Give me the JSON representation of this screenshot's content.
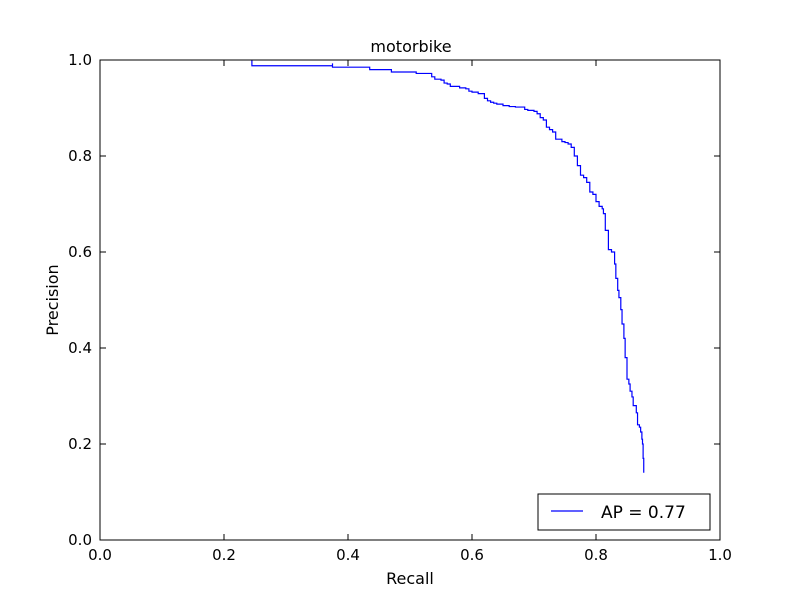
{
  "chart_data": {
    "type": "line",
    "title": "motorbike",
    "xlabel": "Recall",
    "ylabel": "Precision",
    "xlim": [
      0.0,
      1.0
    ],
    "ylim": [
      0.0,
      1.0
    ],
    "x_ticks": [
      "0.0",
      "0.2",
      "0.4",
      "0.6",
      "0.8",
      "1.0"
    ],
    "y_ticks": [
      "0.0",
      "0.2",
      "0.4",
      "0.6",
      "0.8",
      "1.0"
    ],
    "grid": false,
    "legend_position": "bottom-right",
    "series": [
      {
        "name": "AP = 0.77",
        "color": "#0000ff",
        "points": [
          [
            0.245,
            1.0
          ],
          [
            0.245,
            0.988
          ],
          [
            0.375,
            0.993
          ],
          [
            0.375,
            0.985
          ],
          [
            0.435,
            0.985
          ],
          [
            0.435,
            0.98
          ],
          [
            0.47,
            0.98
          ],
          [
            0.47,
            0.975
          ],
          [
            0.51,
            0.975
          ],
          [
            0.51,
            0.972
          ],
          [
            0.535,
            0.972
          ],
          [
            0.535,
            0.965
          ],
          [
            0.54,
            0.96
          ],
          [
            0.55,
            0.958
          ],
          [
            0.555,
            0.952
          ],
          [
            0.56,
            0.95
          ],
          [
            0.565,
            0.945
          ],
          [
            0.575,
            0.945
          ],
          [
            0.58,
            0.942
          ],
          [
            0.59,
            0.94
          ],
          [
            0.595,
            0.935
          ],
          [
            0.6,
            0.933
          ],
          [
            0.61,
            0.93
          ],
          [
            0.62,
            0.928
          ],
          [
            0.62,
            0.92
          ],
          [
            0.625,
            0.915
          ],
          [
            0.63,
            0.912
          ],
          [
            0.635,
            0.91
          ],
          [
            0.64,
            0.908
          ],
          [
            0.65,
            0.905
          ],
          [
            0.66,
            0.903
          ],
          [
            0.67,
            0.902
          ],
          [
            0.68,
            0.902
          ],
          [
            0.685,
            0.897
          ],
          [
            0.69,
            0.895
          ],
          [
            0.7,
            0.893
          ],
          [
            0.705,
            0.888
          ],
          [
            0.71,
            0.88
          ],
          [
            0.715,
            0.875
          ],
          [
            0.72,
            0.87
          ],
          [
            0.72,
            0.86
          ],
          [
            0.725,
            0.855
          ],
          [
            0.73,
            0.85
          ],
          [
            0.735,
            0.845
          ],
          [
            0.735,
            0.835
          ],
          [
            0.745,
            0.83
          ],
          [
            0.75,
            0.828
          ],
          [
            0.755,
            0.825
          ],
          [
            0.76,
            0.818
          ],
          [
            0.765,
            0.808
          ],
          [
            0.765,
            0.8
          ],
          [
            0.77,
            0.78
          ],
          [
            0.775,
            0.775
          ],
          [
            0.775,
            0.76
          ],
          [
            0.78,
            0.755
          ],
          [
            0.785,
            0.745
          ],
          [
            0.79,
            0.738
          ],
          [
            0.79,
            0.725
          ],
          [
            0.795,
            0.72
          ],
          [
            0.8,
            0.715
          ],
          [
            0.8,
            0.705
          ],
          [
            0.805,
            0.695
          ],
          [
            0.81,
            0.69
          ],
          [
            0.812,
            0.68
          ],
          [
            0.815,
            0.66
          ],
          [
            0.815,
            0.645
          ],
          [
            0.82,
            0.625
          ],
          [
            0.82,
            0.605
          ],
          [
            0.825,
            0.6
          ],
          [
            0.83,
            0.598
          ],
          [
            0.83,
            0.575
          ],
          [
            0.832,
            0.545
          ],
          [
            0.835,
            0.52
          ],
          [
            0.837,
            0.505
          ],
          [
            0.84,
            0.48
          ],
          [
            0.842,
            0.45
          ],
          [
            0.845,
            0.42
          ],
          [
            0.847,
            0.38
          ],
          [
            0.85,
            0.335
          ],
          [
            0.853,
            0.325
          ],
          [
            0.855,
            0.31
          ],
          [
            0.858,
            0.298
          ],
          [
            0.86,
            0.28
          ],
          [
            0.865,
            0.265
          ],
          [
            0.867,
            0.24
          ],
          [
            0.87,
            0.235
          ],
          [
            0.872,
            0.225
          ],
          [
            0.874,
            0.21
          ],
          [
            0.875,
            0.2
          ],
          [
            0.876,
            0.17
          ],
          [
            0.877,
            0.14
          ]
        ]
      }
    ]
  }
}
